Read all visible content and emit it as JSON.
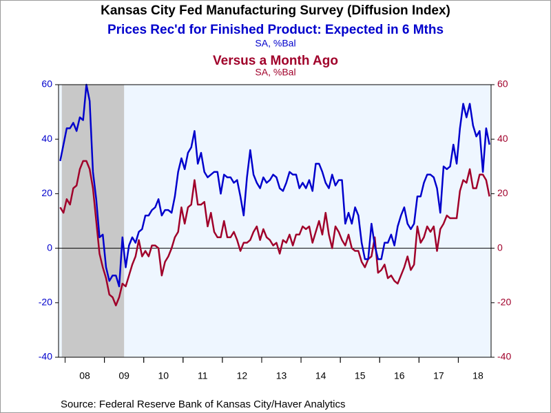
{
  "chart_data": {
    "type": "line",
    "title": "Kansas City Fed Manufacturing Survey (Diffusion Index)",
    "source": "Source:  Federal Reserve Bank of Kansas City/Haver Analytics",
    "categories": [
      null,
      null,
      null,
      null,
      null,
      null,
      null,
      null,
      "08",
      null,
      null,
      null,
      null,
      null,
      null,
      null,
      null,
      null,
      null,
      null,
      "09",
      null,
      null,
      null,
      null,
      null,
      null,
      null,
      null,
      null,
      null,
      null,
      "10",
      null,
      null,
      null,
      null,
      null,
      null,
      null,
      null,
      null,
      null,
      null,
      "11",
      null,
      null,
      null,
      null,
      null,
      null,
      null,
      null,
      null,
      null,
      null,
      "12",
      null,
      null,
      null,
      null,
      null,
      null,
      null,
      null,
      null,
      null,
      null,
      "13",
      null,
      null,
      null,
      null,
      null,
      null,
      null,
      null,
      null,
      null,
      null,
      "14",
      null,
      null,
      null,
      null,
      null,
      null,
      null,
      null,
      null,
      null,
      null,
      "15",
      null,
      null,
      null,
      null,
      null,
      null,
      null,
      null,
      null,
      null,
      null,
      "16",
      null,
      null,
      null,
      null,
      null,
      null,
      null,
      null,
      null,
      null,
      null,
      "17",
      null,
      null,
      null,
      null,
      null,
      null,
      null,
      null,
      null,
      null,
      null,
      "18",
      null,
      null,
      null
    ],
    "recession": {
      "from": 1,
      "to": 19
    },
    "series": [
      {
        "name": "Prices Rec'd for Finished Product: Expected in 6 Mths",
        "units": "SA, %Bal",
        "color": "#0000cc",
        "axis": "y",
        "values": [
          32,
          38,
          44,
          44,
          46,
          43,
          48,
          47,
          60,
          54,
          28,
          18,
          4,
          5,
          -7,
          -12,
          -10,
          -10,
          -14,
          4,
          -7,
          1,
          4,
          2,
          6,
          7,
          12,
          12,
          14,
          15,
          18,
          12,
          14,
          14,
          13,
          19,
          28,
          33,
          29,
          35,
          37,
          43,
          31,
          35,
          28,
          26,
          27,
          28,
          28,
          20,
          27,
          26,
          26,
          24,
          25,
          19,
          12,
          26,
          36,
          27,
          24,
          22,
          26,
          24,
          25,
          27,
          26,
          22,
          21,
          24,
          28,
          27,
          27,
          22,
          24,
          22,
          25,
          21,
          31,
          31,
          28,
          24,
          22,
          27,
          23,
          25,
          25,
          9,
          13,
          9,
          15,
          12,
          2,
          -4,
          -4,
          9,
          1,
          -4,
          -4,
          2,
          2,
          5,
          1,
          8,
          12,
          15,
          9,
          7,
          9,
          19,
          19,
          24,
          27,
          27,
          26,
          22,
          13,
          30,
          29,
          30,
          38,
          31,
          44,
          53,
          48,
          53,
          45,
          41,
          43,
          28,
          44,
          38
        ]
      },
      {
        "name": "Versus a Month Ago",
        "units": "SA, %Bal",
        "color": "#a0002a",
        "axis": "y2",
        "values": [
          15,
          13,
          18,
          16,
          22,
          23,
          29,
          32,
          32,
          29,
          22,
          10,
          -2,
          -7,
          -11,
          -17,
          -18,
          -21,
          -18,
          -13,
          -14,
          -10,
          -6,
          -3,
          3,
          -3,
          -1,
          -3,
          1,
          1,
          0,
          -10,
          -5,
          -3,
          0,
          4,
          6,
          15,
          9,
          15,
          16,
          25,
          16,
          16,
          17,
          8,
          13,
          6,
          4,
          4,
          10,
          4,
          4,
          6,
          3,
          -1,
          2,
          2,
          3,
          6,
          8,
          3,
          7,
          4,
          3,
          1,
          2,
          -2,
          3,
          2,
          5,
          1,
          5,
          5,
          8,
          7,
          8,
          2,
          6,
          10,
          5,
          13,
          5,
          0,
          8,
          6,
          3,
          1,
          5,
          0,
          -1,
          -1,
          -5,
          -7,
          -4,
          -3,
          4,
          -9,
          -8,
          -6,
          -11,
          -10,
          -12,
          -13,
          -10,
          -7,
          -3,
          -8,
          -6,
          8,
          2,
          4,
          8,
          6,
          8,
          -1,
          7,
          9,
          12,
          11,
          11,
          11,
          21,
          25,
          24,
          29,
          22,
          22,
          27,
          27,
          25,
          19
        ]
      }
    ],
    "ylim": [
      -40,
      60
    ],
    "yticks": [
      -40,
      -20,
      0,
      20,
      40,
      60
    ],
    "y2lim": [
      -40,
      60
    ],
    "y2ticks": [
      -40,
      -20,
      0,
      20,
      40,
      60
    ],
    "zero_line": true
  }
}
